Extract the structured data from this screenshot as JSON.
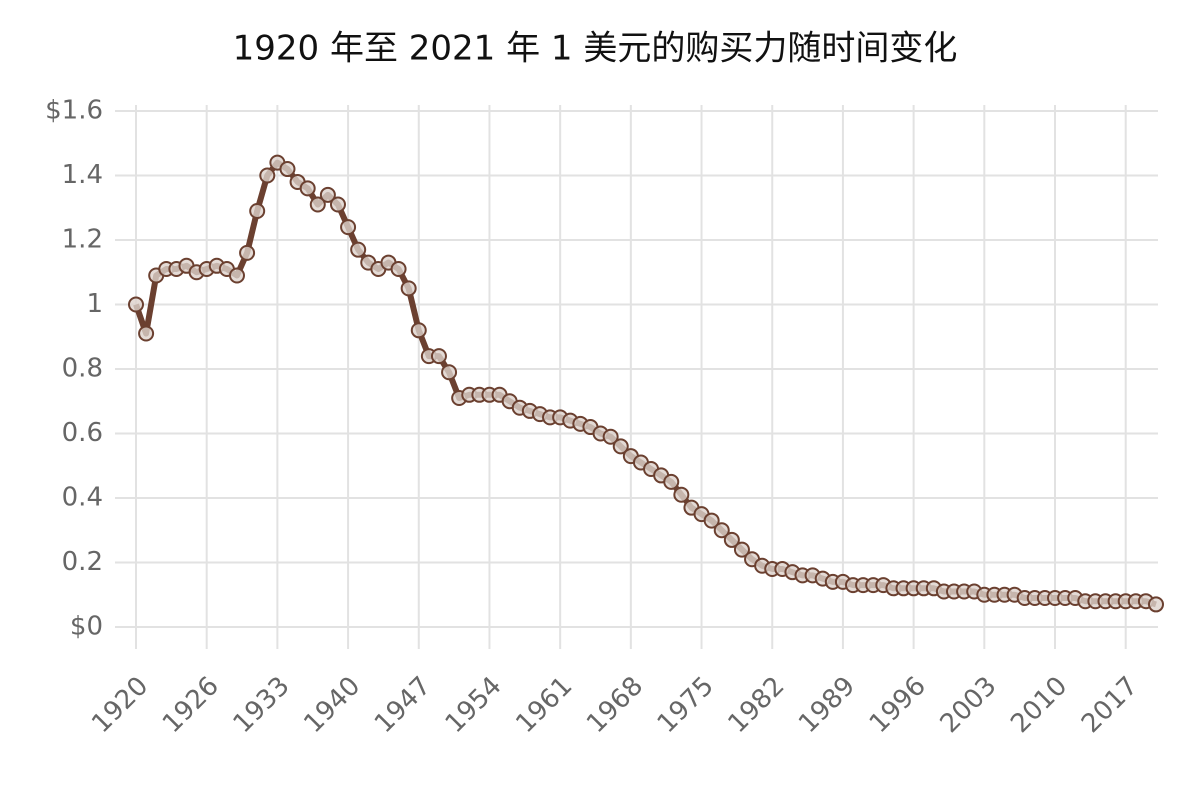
{
  "chart_data": {
    "type": "line",
    "title": "1920 年至 2021 年 1 美元的购买力随时间变化",
    "categories": [
      "1920",
      null,
      null,
      null,
      null,
      null,
      null,
      "1926",
      null,
      null,
      null,
      null,
      null,
      null,
      "1933",
      null,
      null,
      null,
      null,
      null,
      null,
      "1940",
      null,
      null,
      null,
      null,
      null,
      null,
      "1947",
      null,
      null,
      null,
      null,
      null,
      null,
      "1954",
      null,
      null,
      null,
      null,
      null,
      null,
      "1961",
      null,
      null,
      null,
      null,
      null,
      null,
      "1968",
      null,
      null,
      null,
      null,
      null,
      null,
      "1975",
      null,
      null,
      null,
      null,
      null,
      null,
      "1982",
      null,
      null,
      null,
      null,
      null,
      null,
      "1989",
      null,
      null,
      null,
      null,
      null,
      null,
      "1996",
      null,
      null,
      null,
      null,
      null,
      null,
      "2003",
      null,
      null,
      null,
      null,
      null,
      null,
      "2010",
      null,
      null,
      null,
      null,
      null,
      null,
      "2017",
      null,
      null,
      null
    ],
    "series": [
      {
        "color": "#6b4030",
        "values": [
          1.0,
          0.91,
          1.09,
          1.11,
          1.11,
          1.12,
          1.1,
          1.11,
          1.12,
          1.11,
          1.09,
          1.16,
          1.29,
          1.4,
          1.44,
          1.42,
          1.38,
          1.36,
          1.31,
          1.34,
          1.31,
          1.24,
          1.17,
          1.13,
          1.11,
          1.13,
          1.11,
          1.05,
          0.92,
          0.84,
          0.84,
          0.79,
          0.71,
          0.72,
          0.72,
          0.72,
          0.72,
          0.7,
          0.68,
          0.67,
          0.66,
          0.65,
          0.65,
          0.64,
          0.63,
          0.62,
          0.6,
          0.59,
          0.56,
          0.53,
          0.51,
          0.49,
          0.47,
          0.45,
          0.41,
          0.37,
          0.35,
          0.33,
          0.3,
          0.27,
          0.24,
          0.21,
          0.19,
          0.18,
          0.18,
          0.17,
          0.16,
          0.16,
          0.15,
          0.14,
          0.14,
          0.13,
          0.13,
          0.13,
          0.13,
          0.12,
          0.12,
          0.12,
          0.12,
          0.12,
          0.11,
          0.11,
          0.11,
          0.11,
          0.1,
          0.1,
          0.1,
          0.1,
          0.09,
          0.09,
          0.09,
          0.09,
          0.09,
          0.09,
          0.08,
          0.08,
          0.08,
          0.08,
          0.08,
          0.08,
          0.08,
          0.07
        ]
      }
    ],
    "ylim": [
      0,
      1.6
    ],
    "yticks": [
      {
        "value": 0,
        "label": "$0"
      },
      0.2,
      0.4,
      0.6,
      0.8,
      1,
      1.2,
      1.4,
      {
        "value": 1.6,
        "label": "$1.6"
      }
    ],
    "grid": true
  }
}
